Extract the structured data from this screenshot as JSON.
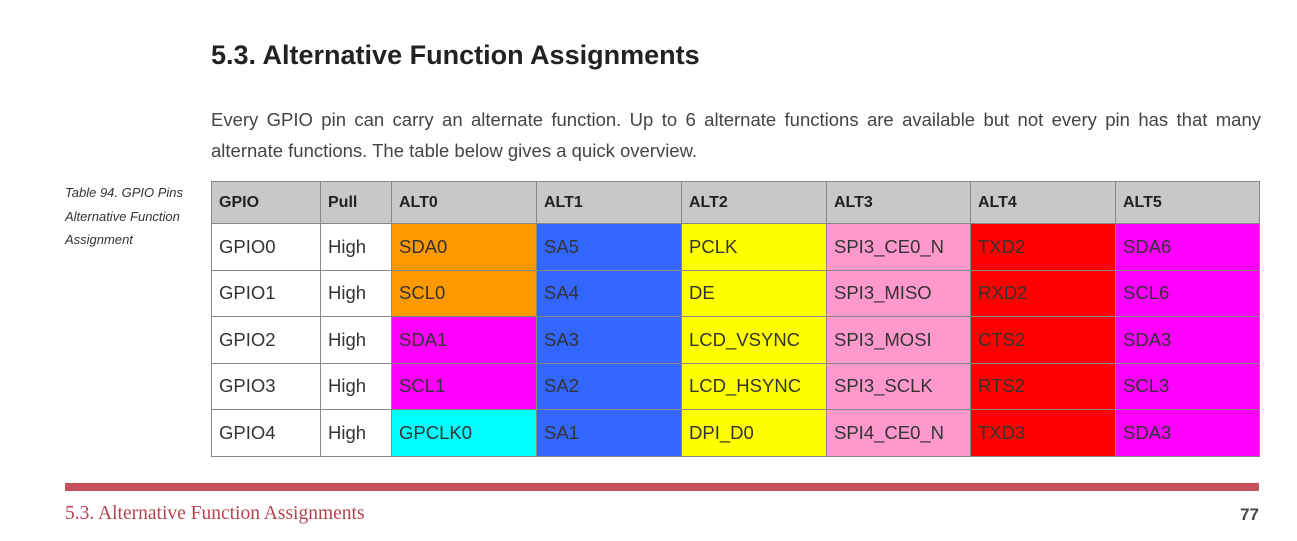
{
  "heading": "5.3. Alternative Function Assignments",
  "paragraph": "Every GPIO pin can carry an alternate function. Up to 6 alternate functions are available but not every pin has that many alternate functions. The table below gives a quick overview.",
  "caption": "Table 94. GPIO Pins Alternative Function Assignment",
  "table": {
    "headers": [
      "GPIO",
      "Pull",
      "ALT0",
      "ALT1",
      "ALT2",
      "ALT3",
      "ALT4",
      "ALT5"
    ],
    "rows": [
      [
        "GPIO0",
        "High",
        "SDA0",
        "SA5",
        "PCLK",
        "SPI3_CE0_N",
        "TXD2",
        "SDA6"
      ],
      [
        "GPIO1",
        "High",
        "SCL0",
        "SA4",
        "DE",
        "SPI3_MISO",
        "RXD2",
        "SCL6"
      ],
      [
        "GPIO2",
        "High",
        "SDA1",
        "SA3",
        "LCD_VSYNC",
        "SPI3_MOSI",
        "CTS2",
        "SDA3"
      ],
      [
        "GPIO3",
        "High",
        "SCL1",
        "SA2",
        "LCD_HSYNC",
        "SPI3_SCLK",
        "RTS2",
        "SCL3"
      ],
      [
        "GPIO4",
        "High",
        "GPCLK0",
        "SA1",
        "DPI_D0",
        "SPI4_CE0_N",
        "TXD3",
        "SDA3"
      ]
    ],
    "colors": [
      [
        "#ffffff",
        "#ffffff",
        "#ff9900",
        "#3366ff",
        "#ffff00",
        "#ff99cc",
        "#ff0000",
        "#ff00ff"
      ],
      [
        "#ffffff",
        "#ffffff",
        "#ff9900",
        "#3366ff",
        "#ffff00",
        "#ff99cc",
        "#ff0000",
        "#ff00ff"
      ],
      [
        "#ffffff",
        "#ffffff",
        "#ff00ff",
        "#3366ff",
        "#ffff00",
        "#ff99cc",
        "#ff0000",
        "#ff00ff"
      ],
      [
        "#ffffff",
        "#ffffff",
        "#ff00ff",
        "#3366ff",
        "#ffff00",
        "#ff99cc",
        "#ff0000",
        "#ff00ff"
      ],
      [
        "#ffffff",
        "#ffffff",
        "#00ffff",
        "#3366ff",
        "#ffff00",
        "#ff99cc",
        "#ff0000",
        "#ff00ff"
      ]
    ]
  },
  "footer": "5.3. Alternative Function Assignments",
  "page_number": "77"
}
